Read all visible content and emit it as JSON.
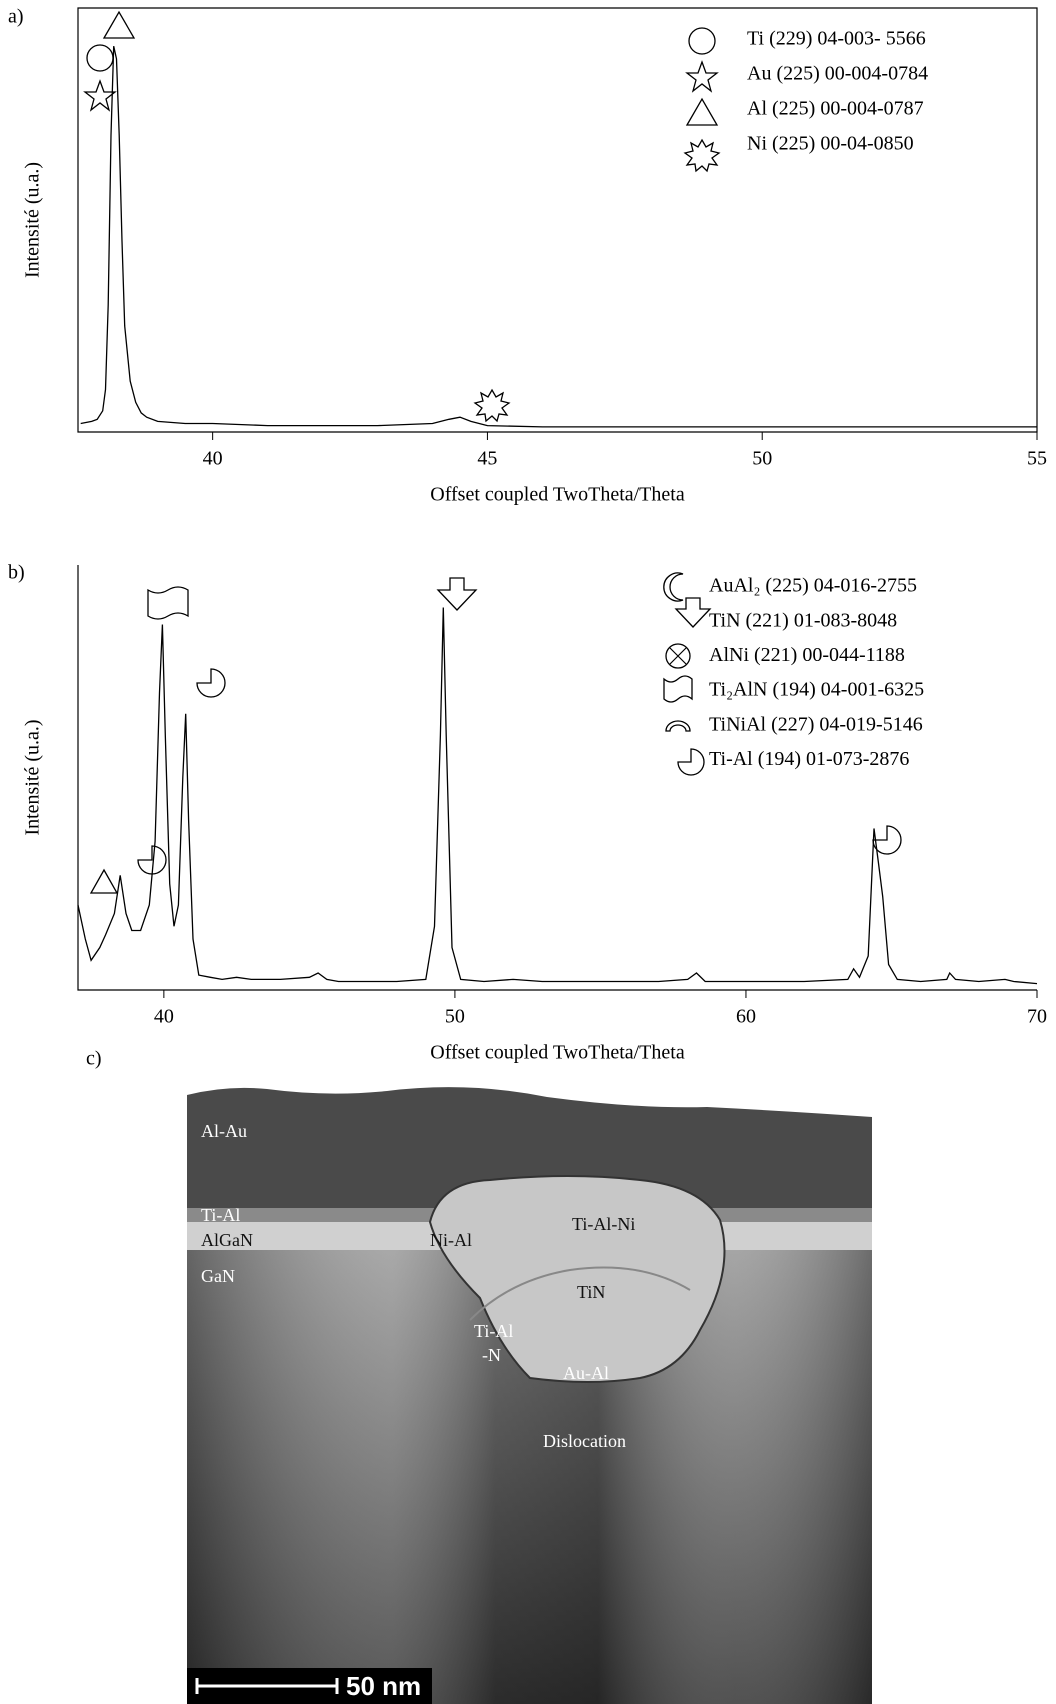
{
  "chart_data": [
    {
      "type": "line",
      "label": "a)",
      "y_label": "Intensité (u.a.)",
      "x_label": "Offset coupled TwoTheta/Theta",
      "xlim": [
        37.55,
        55
      ],
      "xticks": [
        40,
        45,
        50,
        55
      ],
      "ylim": [
        0,
        100
      ],
      "color": "#000000",
      "x": [
        37.6,
        37.8,
        37.9,
        38.0,
        38.05,
        38.1,
        38.15,
        38.2,
        38.25,
        38.3,
        38.35,
        38.4,
        38.5,
        38.6,
        38.7,
        38.8,
        39.0,
        39.5,
        40.0,
        41,
        42,
        43,
        44,
        44.3,
        44.5,
        44.7,
        45,
        46,
        48,
        50,
        52,
        54,
        55
      ],
      "values": [
        2,
        2.5,
        3,
        5,
        10,
        30,
        70,
        91,
        88,
        70,
        45,
        25,
        12,
        7,
        4.5,
        3.5,
        2.5,
        2,
        2,
        1.5,
        1.5,
        1.5,
        2,
        3,
        3.5,
        2.5,
        1.5,
        1.2,
        1.2,
        1.2,
        1.2,
        1.2,
        1.2
      ],
      "legend": [
        "Ti (229) 04-003- 5566",
        "Au (225) 00-004-0784",
        "Al (225) 00-004-0787",
        "Ni (225) 00-04-0850"
      ]
    },
    {
      "type": "line",
      "label": "b)",
      "y_label": "Intensité (u.a.)",
      "x_label": "Offset coupled TwoTheta/Theta",
      "xlim": [
        37.05,
        70
      ],
      "xticks": [
        40,
        50,
        60,
        70
      ],
      "ylim": [
        0,
        100
      ],
      "color": "#000000",
      "x": [
        37.05,
        37.3,
        37.5,
        37.8,
        38.0,
        38.3,
        38.5,
        38.7,
        38.9,
        39.2,
        39.5,
        39.7,
        39.85,
        39.95,
        40.05,
        40.2,
        40.35,
        40.5,
        40.65,
        40.75,
        40.85,
        41.0,
        41.2,
        41.6,
        42,
        42.5,
        43,
        44,
        45,
        45.3,
        45.6,
        46,
        47,
        48,
        49,
        49.3,
        49.5,
        49.6,
        49.7,
        49.9,
        50.2,
        51,
        52,
        53,
        55,
        57,
        58,
        58.3,
        58.6,
        60,
        62,
        63.5,
        63.7,
        63.9,
        64.2,
        64.4,
        64.55,
        64.7,
        64.9,
        65.2,
        66,
        66.9,
        67,
        67.2,
        68,
        68.9,
        69.2,
        70
      ],
      "values": [
        20,
        12,
        7,
        10,
        13,
        18,
        27,
        18,
        14,
        14,
        20,
        35,
        70,
        86,
        60,
        25,
        15,
        20,
        50,
        65,
        40,
        12,
        3.5,
        3,
        2.5,
        3,
        2.5,
        2.5,
        3,
        4,
        2.5,
        2,
        2,
        2,
        2.5,
        15,
        60,
        90,
        60,
        10,
        2.5,
        2,
        2.5,
        2,
        2,
        2,
        2.5,
        4,
        2,
        2,
        2,
        2.5,
        5,
        3,
        8,
        38,
        30,
        22,
        6,
        2.5,
        2,
        2.5,
        4,
        2.5,
        2,
        2.5,
        2,
        1.5
      ],
      "legend": [
        "AuAl₂ (225) 04-016-2755",
        "TiN (221) 01-083-8048",
        "AlNi (221) 00-044-1188",
        "Ti₂AlN (194) 04-001-6325",
        "TiNiAl (227) 04-019-5146",
        "Ti-Al (194) 01-073-2876"
      ]
    }
  ],
  "image": {
    "label": "c)",
    "annotations": [
      "Al-Au",
      "Ti-Al",
      "AlGaN",
      "GaN",
      "Ni-Al",
      "Ti-Al-Ni",
      "TiN",
      "Ti-Al",
      "-N",
      "Au-Al",
      "Dislocation"
    ],
    "scale_bar": "50 nm"
  }
}
